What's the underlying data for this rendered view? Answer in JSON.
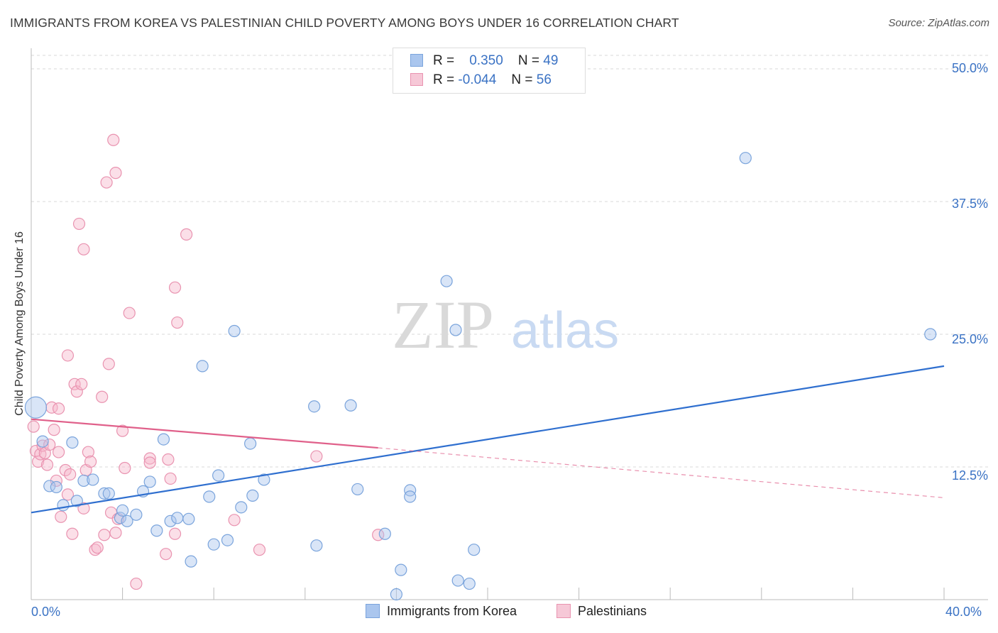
{
  "title": "IMMIGRANTS FROM KOREA VS PALESTINIAN CHILD POVERTY AMONG BOYS UNDER 16 CORRELATION CHART",
  "source": "Source: ZipAtlas.com",
  "watermark": {
    "zip": "ZIP",
    "atlas": "atlas"
  },
  "legend": {
    "korea": {
      "r_label": "R =",
      "r_value": "0.350",
      "n_label": "N =",
      "n_value": "49"
    },
    "palestinians": {
      "r_label": "R =",
      "r_value": "-0.044",
      "n_label": "N =",
      "n_value": "56"
    }
  },
  "bottom_legend": {
    "korea": "Immigrants from Korea",
    "palestinians": "Palestinians"
  },
  "colors": {
    "korea_fill": "#aac6ee",
    "korea_stroke": "#7aa4dc",
    "korea_line": "#2f6fcf",
    "pal_fill": "#f6b8cb",
    "pal_stroke": "#e993b0",
    "pal_line": "#e0608a",
    "tick_label": "#3a72c4",
    "grid": "#d8d8d8"
  },
  "chart_data": {
    "type": "scatter",
    "title": "IMMIGRANTS FROM KOREA VS PALESTINIAN CHILD POVERTY AMONG BOYS UNDER 16 CORRELATION CHART",
    "xlabel": "",
    "ylabel": "Child Poverty Among Boys Under 16",
    "xlim": [
      0,
      40
    ],
    "ylim": [
      0,
      50
    ],
    "x_tick_labels": [
      "0.0%",
      "40.0%"
    ],
    "y_ticks": [
      12.5,
      25.0,
      37.5,
      50.0
    ],
    "y_tick_labels": [
      "12.5%",
      "25.0%",
      "37.5%",
      "50.0%"
    ],
    "grid": true,
    "legend_placement": "top-center",
    "series": [
      {
        "name": "Immigrants from Korea",
        "r": 0.35,
        "n": 49,
        "trend": {
          "x": [
            0,
            40
          ],
          "y": [
            8.2,
            22.0
          ]
        },
        "points": [
          [
            0.2,
            18.1
          ],
          [
            0.5,
            14.9
          ],
          [
            0.8,
            10.7
          ],
          [
            1.1,
            10.6
          ],
          [
            1.4,
            8.9
          ],
          [
            1.8,
            14.8
          ],
          [
            2.0,
            9.3
          ],
          [
            2.3,
            11.2
          ],
          [
            2.7,
            11.3
          ],
          [
            3.2,
            10.0
          ],
          [
            3.4,
            10.0
          ],
          [
            3.9,
            7.7
          ],
          [
            4.0,
            8.4
          ],
          [
            4.2,
            7.4
          ],
          [
            4.6,
            8.0
          ],
          [
            4.9,
            10.2
          ],
          [
            5.2,
            11.1
          ],
          [
            5.5,
            6.5
          ],
          [
            5.8,
            15.1
          ],
          [
            6.1,
            7.4
          ],
          [
            6.4,
            7.7
          ],
          [
            6.9,
            7.6
          ],
          [
            7.0,
            3.6
          ],
          [
            7.5,
            22.0
          ],
          [
            7.8,
            9.7
          ],
          [
            8.0,
            5.2
          ],
          [
            8.2,
            11.7
          ],
          [
            8.6,
            5.6
          ],
          [
            8.9,
            25.3
          ],
          [
            9.2,
            8.7
          ],
          [
            9.6,
            14.7
          ],
          [
            9.7,
            9.8
          ],
          [
            10.2,
            11.3
          ],
          [
            12.4,
            18.2
          ],
          [
            12.5,
            5.1
          ],
          [
            14.0,
            18.3
          ],
          [
            14.3,
            10.4
          ],
          [
            16.0,
            0.5
          ],
          [
            15.5,
            6.2
          ],
          [
            16.2,
            2.8
          ],
          [
            16.6,
            10.3
          ],
          [
            16.6,
            9.7
          ],
          [
            18.2,
            30.0
          ],
          [
            18.6,
            25.4
          ],
          [
            18.7,
            1.8
          ],
          [
            19.2,
            1.5
          ],
          [
            19.4,
            4.7
          ],
          [
            31.3,
            41.6
          ],
          [
            39.4,
            25.0
          ]
        ]
      },
      {
        "name": "Palestinians",
        "r": -0.044,
        "n": 56,
        "trend": {
          "x": [
            0,
            15.2
          ],
          "y": [
            17.0,
            14.3
          ]
        },
        "trend_dashed": {
          "x": [
            15.2,
            40
          ],
          "y": [
            14.3,
            9.6
          ]
        },
        "points": [
          [
            0.1,
            16.3
          ],
          [
            0.2,
            14.0
          ],
          [
            0.3,
            13.0
          ],
          [
            0.4,
            13.7
          ],
          [
            0.5,
            14.5
          ],
          [
            0.6,
            13.8
          ],
          [
            0.7,
            12.7
          ],
          [
            0.8,
            14.6
          ],
          [
            0.9,
            18.1
          ],
          [
            1.0,
            16.0
          ],
          [
            1.1,
            11.2
          ],
          [
            1.2,
            13.9
          ],
          [
            1.2,
            18.0
          ],
          [
            1.3,
            7.8
          ],
          [
            1.5,
            12.2
          ],
          [
            1.6,
            9.9
          ],
          [
            1.6,
            23.0
          ],
          [
            1.7,
            11.8
          ],
          [
            1.8,
            6.2
          ],
          [
            1.9,
            20.3
          ],
          [
            2.0,
            19.6
          ],
          [
            2.1,
            35.4
          ],
          [
            2.2,
            20.3
          ],
          [
            2.3,
            8.6
          ],
          [
            2.3,
            33.0
          ],
          [
            2.4,
            12.2
          ],
          [
            2.5,
            13.9
          ],
          [
            2.6,
            13.0
          ],
          [
            2.8,
            4.7
          ],
          [
            2.9,
            4.9
          ],
          [
            3.1,
            19.1
          ],
          [
            3.2,
            6.1
          ],
          [
            3.3,
            39.3
          ],
          [
            3.4,
            22.2
          ],
          [
            3.5,
            8.2
          ],
          [
            3.6,
            43.3
          ],
          [
            3.7,
            40.2
          ],
          [
            3.7,
            6.3
          ],
          [
            3.8,
            7.6
          ],
          [
            4.0,
            15.9
          ],
          [
            4.1,
            12.4
          ],
          [
            4.3,
            27.0
          ],
          [
            4.6,
            1.5
          ],
          [
            5.2,
            13.3
          ],
          [
            5.2,
            12.9
          ],
          [
            5.9,
            4.3
          ],
          [
            6.0,
            13.2
          ],
          [
            6.1,
            11.4
          ],
          [
            6.3,
            29.4
          ],
          [
            6.3,
            6.2
          ],
          [
            6.4,
            26.1
          ],
          [
            6.8,
            34.4
          ],
          [
            8.9,
            7.5
          ],
          [
            10.0,
            4.7
          ],
          [
            12.5,
            13.5
          ],
          [
            15.2,
            6.1
          ]
        ]
      }
    ]
  }
}
